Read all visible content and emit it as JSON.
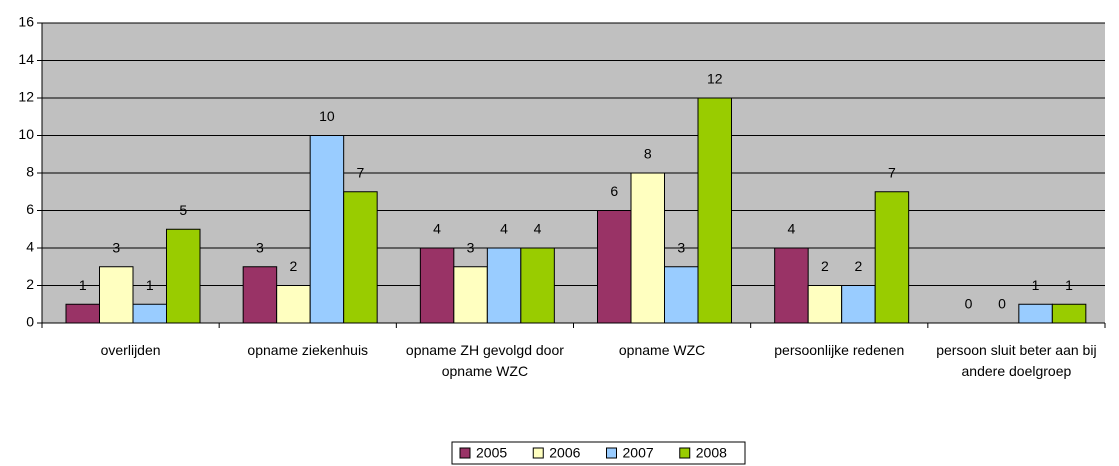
{
  "chart_data": {
    "type": "bar",
    "categories": [
      "overlijden",
      "opname ziekenhuis",
      "opname ZH gevolgd door opname WZC",
      "opname WZC",
      "persoonlijke redenen",
      "persoon sluit beter aan bij andere doelgroep"
    ],
    "series": [
      {
        "name": "2005",
        "color": "#993366",
        "values": [
          1,
          3,
          4,
          6,
          4,
          0
        ]
      },
      {
        "name": "2006",
        "color": "#ffffc0",
        "values": [
          3,
          2,
          3,
          8,
          2,
          0
        ]
      },
      {
        "name": "2007",
        "color": "#99ccff",
        "values": [
          1,
          10,
          4,
          3,
          2,
          1
        ]
      },
      {
        "name": "2008",
        "color": "#99cc00",
        "values": [
          5,
          7,
          4,
          12,
          7,
          1
        ]
      }
    ],
    "ylim": [
      0,
      16
    ],
    "yticks": [
      0,
      2,
      4,
      6,
      8,
      10,
      12,
      14,
      16
    ],
    "grid": true,
    "legend": "bottom"
  }
}
